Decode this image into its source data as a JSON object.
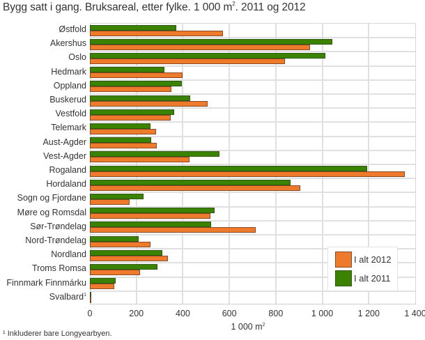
{
  "chart_data": {
    "type": "bar",
    "orientation": "horizontal",
    "title": "Bygg satt i gang. Bruksareal, etter fylke. 1 000 m². 2011 og 2012",
    "xlabel": "1 000 m²",
    "ylabel": "",
    "xlim": [
      0,
      1400
    ],
    "xticks": [
      "0",
      "200",
      "400",
      "600",
      "800",
      "1 000",
      "1 200",
      "1 400"
    ],
    "xtick_values": [
      0,
      200,
      400,
      600,
      800,
      1000,
      1200,
      1400
    ],
    "grid": true,
    "legend_position": "bottom-right inside",
    "categories": [
      "Østfold",
      "Akershus",
      "Oslo",
      "Hedmark",
      "Oppland",
      "Buskerud",
      "Vestfold",
      "Telemark",
      "Aust-Agder",
      "Vest-Agder",
      "Rogaland",
      "Hordaland",
      "Sogn og Fjordane",
      "Møre og Romsdal",
      "Sør-Trøndelag",
      "Nord-Trøndelag",
      "Nordland",
      "Troms Romsa",
      "Finnmark Finnmárku",
      "Svalbard¹"
    ],
    "series": [
      {
        "name": "I alt 2011",
        "color": "#3a8200",
        "values": [
          373,
          1043,
          1014,
          321,
          396,
          432,
          363,
          260,
          265,
          558,
          1194,
          862,
          232,
          538,
          522,
          210,
          312,
          291,
          112,
          1
        ]
      },
      {
        "name": "I alt 2012",
        "color": "#ee7b2b",
        "values": [
          573,
          946,
          838,
          399,
          351,
          507,
          348,
          285,
          288,
          428,
          1354,
          904,
          171,
          519,
          713,
          261,
          336,
          215,
          106,
          4
        ]
      }
    ],
    "footnote": "¹ Inkluderer bare Longyearbyen."
  },
  "header": {
    "title_main": "Bygg satt i gang. Bruksareal, etter fylke. 1 000 m",
    "title_sup": "2",
    "title_tail": ". 2011 og 2012"
  },
  "axis": {
    "xlabel_main": "1 000 m",
    "xlabel_sup": "2",
    "ticks": [
      "0",
      "200",
      "400",
      "600",
      "800",
      "1 000",
      "1 200",
      "1 400"
    ]
  },
  "categories": [
    {
      "label": "Østfold",
      "sup": ""
    },
    {
      "label": "Akershus",
      "sup": ""
    },
    {
      "label": "Oslo",
      "sup": ""
    },
    {
      "label": "Hedmark",
      "sup": ""
    },
    {
      "label": "Oppland",
      "sup": ""
    },
    {
      "label": "Buskerud",
      "sup": ""
    },
    {
      "label": "Vestfold",
      "sup": ""
    },
    {
      "label": "Telemark",
      "sup": ""
    },
    {
      "label": "Aust-Agder",
      "sup": ""
    },
    {
      "label": "Vest-Agder",
      "sup": ""
    },
    {
      "label": "Rogaland",
      "sup": ""
    },
    {
      "label": "Hordaland",
      "sup": ""
    },
    {
      "label": "Sogn og Fjordane",
      "sup": ""
    },
    {
      "label": "Møre og Romsdal",
      "sup": ""
    },
    {
      "label": "Sør-Trøndelag",
      "sup": ""
    },
    {
      "label": "Nord-Trøndelag",
      "sup": ""
    },
    {
      "label": "Nordland",
      "sup": ""
    },
    {
      "label": "Troms Romsa",
      "sup": ""
    },
    {
      "label": "Finnmark Finnmárku",
      "sup": ""
    },
    {
      "label": "Svalbard",
      "sup": "1"
    }
  ],
  "legend": {
    "items": [
      {
        "label": "I alt 2012",
        "color": "#ee7b2b"
      },
      {
        "label": "I alt 2011",
        "color": "#3a8200"
      }
    ]
  },
  "footnote": "¹ Inkluderer bare Longyearbyen."
}
